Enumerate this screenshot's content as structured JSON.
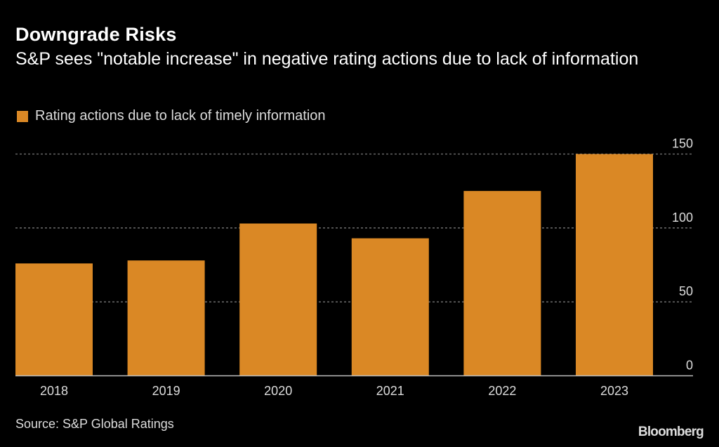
{
  "header": {
    "title": "Downgrade Risks",
    "subtitle": "S&P sees \"notable increase\" in negative rating actions due to lack of information"
  },
  "footer": {
    "source": "Source: S&P Global Ratings",
    "brand": "Bloomberg"
  },
  "colors": {
    "bar": "#DA8825",
    "background": "#000000",
    "grid": "#777777",
    "baseline": "#BBBBBB"
  },
  "chart_data": {
    "type": "bar",
    "title": "Downgrade Risks",
    "subtitle": "S&P sees \"notable increase\" in negative rating actions due to lack of information",
    "categories": [
      "2018",
      "2019",
      "2020",
      "2021",
      "2022",
      "2023"
    ],
    "series": [
      {
        "name": "Rating actions due to lack of timely information",
        "values": [
          76,
          78,
          103,
          93,
          125,
          150
        ]
      }
    ],
    "xlabel": "",
    "ylabel": "",
    "ylim": [
      0,
      150
    ],
    "yticks": [
      0,
      50,
      100,
      150
    ],
    "ytick_labels": [
      "0",
      "50",
      "100",
      "150"
    ],
    "y_axis_side": "right",
    "grid": "horizontal dotted",
    "legend_position": "top-left",
    "source": "Source: S&P Global Ratings"
  }
}
